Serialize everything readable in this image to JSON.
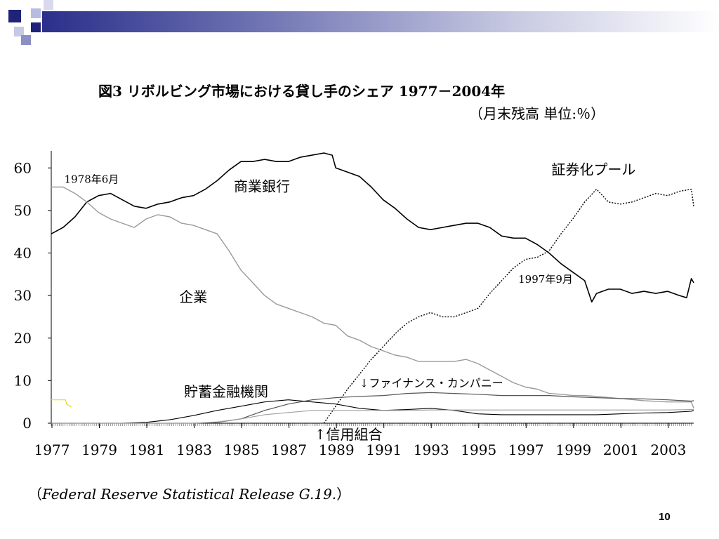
{
  "slide": {
    "title": "図3  リボルビング市場における貸し手のシェア  1977－2004年",
    "subtitle": "（月末残高  単位:％）",
    "source_open": "（",
    "source_italic": "Federal Reserve Statistical Release G.19.",
    "source_close": "）",
    "page_number": "10"
  },
  "colors": {
    "deco_dark": "#1f237a",
    "deco_mid": "#8c8fc4",
    "commercial_banks": "#000000",
    "corporations": "#9a9a9a",
    "securitized_pools": "#000000",
    "finance_companies": "#555555",
    "savings_institutions": "#000000",
    "credit_unions": "#a0a0a0",
    "other": "#e8e000"
  },
  "chart_data": {
    "type": "line",
    "title": "図3  リボルビング市場における貸し手のシェア  1977－2004年",
    "unit_note": "（月末残高  単位:％）",
    "xlabel": "",
    "ylabel": "",
    "xlim": [
      1977,
      2004.1
    ],
    "ylim": [
      0,
      64
    ],
    "yticks": [
      0,
      10,
      20,
      30,
      40,
      50,
      60
    ],
    "xtick_labels": [
      "1977",
      "1979",
      "1981",
      "1983",
      "1985",
      "1987",
      "1989",
      "1991",
      "1993",
      "1995",
      "1997",
      "1999",
      "2001",
      "2003"
    ],
    "grid": false,
    "series": [
      {
        "name": "商業銀行",
        "style": "solid-black",
        "x": [
          1977,
          1977.5,
          1978,
          1978.5,
          1979,
          1979.5,
          1980,
          1980.5,
          1981,
          1981.5,
          1982,
          1982.5,
          1983,
          1983.5,
          1984,
          1984.5,
          1985,
          1985.5,
          1986,
          1986.5,
          1987,
          1987.5,
          1988,
          1988.5,
          1988.85,
          1989,
          1989.5,
          1990,
          1990.5,
          1991,
          1991.5,
          1992,
          1992.5,
          1993,
          1993.5,
          1994,
          1994.5,
          1995,
          1995.5,
          1996,
          1996.5,
          1997,
          1997.5,
          1998,
          1998.5,
          1999,
          1999.5,
          1999.8,
          2000,
          2000.5,
          2001,
          2001.5,
          2002,
          2002.5,
          2003,
          2003.5,
          2003.8,
          2004,
          2004.1
        ],
        "values": [
          44.5,
          46,
          48.5,
          52,
          53.5,
          54,
          52.5,
          51,
          50.5,
          51.5,
          52,
          53,
          53.5,
          55,
          57,
          59.5,
          61.5,
          61.5,
          62,
          61.5,
          61.5,
          62.5,
          63,
          63.5,
          63,
          60,
          59,
          58,
          55.5,
          52.5,
          50.5,
          48,
          46,
          45.5,
          46,
          46.5,
          47,
          47,
          46,
          44,
          43.5,
          43.5,
          42,
          40,
          37.5,
          35.5,
          33.5,
          28.5,
          30.5,
          31.5,
          31.5,
          30.5,
          31,
          30.5,
          31,
          30,
          29.5,
          34,
          33
        ]
      },
      {
        "name": "企業",
        "style": "solid-gray",
        "x": [
          1977,
          1977.5,
          1978,
          1978.5,
          1979,
          1979.5,
          1980,
          1980.5,
          1981,
          1981.5,
          1982,
          1982.5,
          1983,
          1983.5,
          1984,
          1984.5,
          1985,
          1985.5,
          1986,
          1986.5,
          1987,
          1987.5,
          1988,
          1988.5,
          1989,
          1989.5,
          1990,
          1990.5,
          1991,
          1991.5,
          1992,
          1992.5,
          1993,
          1993.5,
          1994,
          1994.5,
          1995,
          1995.5,
          1996,
          1996.5,
          1997,
          1997.5,
          1998,
          1998.5,
          1999,
          1999.5,
          2000,
          2001,
          2002,
          2003,
          2004,
          2004.1
        ],
        "values": [
          55.5,
          55.5,
          54,
          52,
          49.5,
          48,
          47,
          46,
          48,
          49,
          48.5,
          47,
          46.5,
          45.5,
          44.5,
          40.5,
          36,
          33,
          30,
          28,
          27,
          26,
          25,
          23.5,
          23,
          20.5,
          19.5,
          18,
          17,
          16,
          15.5,
          14.5,
          14.5,
          14.5,
          14.5,
          15,
          14,
          12.5,
          11,
          9.5,
          8.5,
          8,
          7,
          6.8,
          6.5,
          6.5,
          6.3,
          5.8,
          5.3,
          5,
          5,
          3.5
        ]
      },
      {
        "name": "証券化プール",
        "style": "dotted-black",
        "x": [
          1988.5,
          1989,
          1989.5,
          1990,
          1990.5,
          1991,
          1991.5,
          1992,
          1992.5,
          1993,
          1993.5,
          1994,
          1994.5,
          1995,
          1995.5,
          1996,
          1996.5,
          1997,
          1997.5,
          1998,
          1998.5,
          1999,
          1999.5,
          2000,
          2000.5,
          2001,
          2001.5,
          2002,
          2002.5,
          2003,
          2003.5,
          2004,
          2004.1
        ],
        "values": [
          0,
          4,
          8,
          11.5,
          15,
          18,
          21,
          23.5,
          25,
          26,
          25,
          25,
          26,
          27,
          30.5,
          33.5,
          36.5,
          38.5,
          39,
          40.5,
          44.5,
          48,
          52,
          55,
          52,
          51.5,
          52,
          53,
          54,
          53.5,
          54.5,
          55,
          51
        ]
      },
      {
        "name": "ファイナンス・カンパニー",
        "style": "solid-darkgray",
        "x": [
          1977,
          1978,
          1979,
          1980,
          1981,
          1982,
          1983,
          1984,
          1985,
          1986,
          1987,
          1988,
          1989,
          1990,
          1991,
          1992,
          1993,
          1994,
          1995,
          1996,
          1997,
          1998,
          1999,
          2000,
          2001,
          2002,
          2003,
          2004,
          2004.1
        ],
        "values": [
          0,
          0,
          0,
          0,
          0,
          0,
          0,
          0.2,
          1,
          3,
          4.5,
          5.5,
          6,
          6.3,
          6.5,
          7,
          7.2,
          7,
          6.8,
          6.5,
          6.5,
          6.5,
          6.2,
          6,
          5.8,
          5.7,
          5.5,
          5.2,
          5.3
        ]
      },
      {
        "name": "貯蓄金融機関",
        "style": "solid-black-thin",
        "x": [
          1977,
          1978,
          1979,
          1980,
          1981,
          1982,
          1983,
          1984,
          1985,
          1986,
          1987,
          1988,
          1989,
          1990,
          1991,
          1992,
          1993,
          1994,
          1995,
          1996,
          1997,
          1998,
          1999,
          2000,
          2001,
          2002,
          2003,
          2004,
          2004.1
        ],
        "values": [
          0,
          0,
          0,
          0,
          0.2,
          0.8,
          1.8,
          3,
          4,
          5,
          5.5,
          5,
          4.5,
          3.5,
          3,
          3.2,
          3.5,
          3,
          2.2,
          2,
          2,
          2,
          2,
          2,
          2.2,
          2.4,
          2.5,
          2.8,
          3
        ]
      },
      {
        "name": "信用組合",
        "style": "solid-gray-thin",
        "x": [
          1977,
          1983,
          1984,
          1985,
          1986,
          1987,
          1988,
          1989,
          1990,
          1991,
          1992,
          1993,
          1994,
          1995,
          1996,
          1997,
          1998,
          1999,
          2000,
          2001,
          2002,
          2003,
          2004,
          2004.1
        ],
        "values": [
          0,
          0,
          0.3,
          1,
          2,
          2.5,
          3,
          3,
          3,
          3,
          3,
          3.1,
          3.1,
          3.1,
          3.1,
          3.1,
          3.1,
          3.1,
          3.1,
          3.1,
          3.1,
          3.1,
          3.2,
          3.2
        ]
      },
      {
        "name": "",
        "style": "solid-yellow",
        "x": [
          1977,
          1977.6,
          1977.65,
          1977.85
        ],
        "values": [
          5.5,
          5.5,
          4.5,
          3.8
        ]
      }
    ],
    "annotations": [
      {
        "text": "1978年6月",
        "x": 1977.55,
        "y": 56.5
      },
      {
        "text": "商業銀行",
        "x": 1984.7,
        "y": 54.5
      },
      {
        "text": "証券化プール",
        "x": 1998.1,
        "y": 58.5
      },
      {
        "text": "企業",
        "x": 1982.4,
        "y": 28.5
      },
      {
        "text": "1997年9月",
        "x": 1996.7,
        "y": 33
      },
      {
        "text": "↓ファイナンス・カンパニー",
        "x": 1990,
        "y": 8.5
      },
      {
        "text": "貯蓄金融機関",
        "x": 1982.6,
        "y": 6.3
      },
      {
        "text": "↑信用組合",
        "x": 1988.1,
        "y": -3.8
      }
    ]
  }
}
